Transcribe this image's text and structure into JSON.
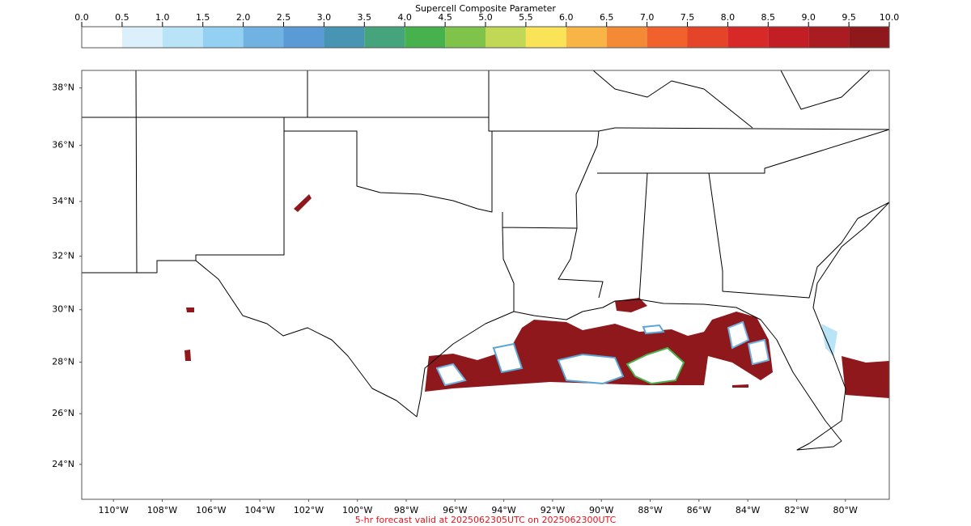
{
  "colorbar": {
    "label": "Supercell Composite Parameter",
    "ticks": [
      {
        "value": 0,
        "label": "0.0"
      },
      0.5,
      {
        "value": 1,
        "label": "1.0"
      },
      1.5,
      {
        "value": 2,
        "label": "2.0"
      },
      2.5,
      {
        "value": 3,
        "label": "3.0"
      },
      3.5,
      {
        "value": 4,
        "label": "4.0"
      },
      4.5,
      {
        "value": 5,
        "label": "5.0"
      },
      5.5,
      {
        "value": 6,
        "label": "6.0"
      },
      6.5,
      {
        "value": 7,
        "label": "7.0"
      },
      7.5,
      {
        "value": 8,
        "label": "8.0"
      },
      8.5,
      {
        "value": 9,
        "label": "9.0"
      },
      9.5,
      {
        "value": 10,
        "label": "10.0"
      }
    ],
    "colors": [
      "#ffffff",
      "#dcf0fb",
      "#b9e3f7",
      "#93d0f1",
      "#70b3e2",
      "#5a9ad5",
      "#4795b2",
      "#45a47b",
      "#47b24d",
      "#80c34a",
      "#c1d857",
      "#fae356",
      "#f8b546",
      "#f48a36",
      "#f0612b",
      "#e44528",
      "#d72a28",
      "#c11e26",
      "#a81c22",
      "#8f181c"
    ]
  },
  "map": {
    "xlim": [
      -111.3,
      -78.2
    ],
    "ylim": [
      22.6,
      38.6
    ],
    "xticks": [
      {
        "value": -110,
        "label": "110°W"
      },
      {
        "value": -108,
        "label": "108°W"
      },
      {
        "value": -106,
        "label": "106°W"
      },
      {
        "value": -104,
        "label": "104°W"
      },
      {
        "value": -102,
        "label": "102°W"
      },
      {
        "value": -100,
        "label": "100°W"
      },
      {
        "value": -98,
        "label": "98°W"
      },
      {
        "value": -96,
        "label": "96°W"
      },
      {
        "value": -94,
        "label": "94°W"
      },
      {
        "value": -92,
        "label": "92°W"
      },
      {
        "value": -90,
        "label": "90°W"
      },
      {
        "value": -88,
        "label": "88°W"
      },
      {
        "value": -86,
        "label": "86°W"
      },
      {
        "value": -84,
        "label": "84°W"
      },
      {
        "value": -82,
        "label": "82°W"
      },
      {
        "value": -80,
        "label": "80°W"
      }
    ],
    "yticks": [
      {
        "value": 38,
        "label": "38°N"
      },
      {
        "value": 36,
        "label": "36°N"
      },
      {
        "value": 34,
        "label": "34°N"
      },
      {
        "value": 32,
        "label": "32°N"
      },
      {
        "value": 30,
        "label": "30°N"
      },
      {
        "value": 28,
        "label": "28°N"
      },
      {
        "value": 26,
        "label": "26°N"
      },
      {
        "value": 24,
        "label": "24°N"
      }
    ],
    "footer": "5-hr forecast valid at 2025062305UTC on 2025062300UTC"
  }
}
